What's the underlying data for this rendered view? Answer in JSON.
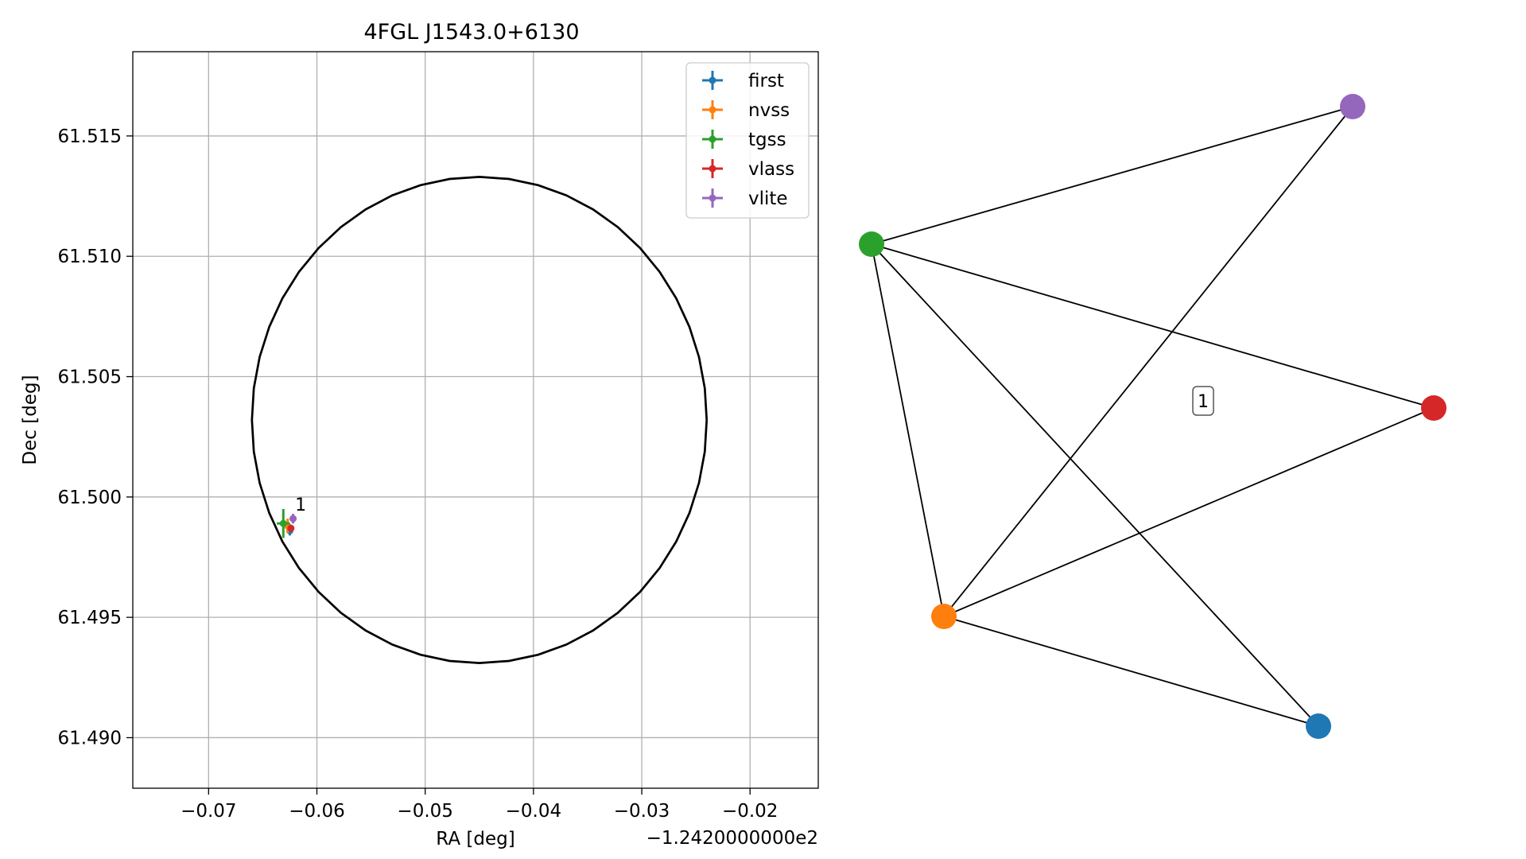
{
  "chart_data": [
    {
      "type": "scatter",
      "title": "4FGL J1543.0+6130",
      "xlabel": "RA [deg]",
      "ylabel": "Dec [deg]",
      "x_offset_label": "−1.2420000000e2",
      "xlim": [
        -0.077,
        -0.0137
      ],
      "ylim": [
        61.4879,
        61.5185
      ],
      "x_ticks": [
        -0.07,
        -0.06,
        -0.05,
        -0.04,
        -0.03,
        -0.02
      ],
      "x_tick_labels": [
        "−0.07",
        "−0.06",
        "−0.05",
        "−0.04",
        "−0.03",
        "−0.02"
      ],
      "y_ticks": [
        61.49,
        61.495,
        61.5,
        61.505,
        61.51,
        61.515
      ],
      "y_tick_labels": [
        "61.490",
        "61.495",
        "61.500",
        "61.505",
        "61.510",
        "61.515"
      ],
      "grid": true,
      "legend_position": "top-right",
      "ellipse": {
        "center": [
          -0.045,
          61.5032
        ],
        "half_width": 0.021,
        "half_height": 0.0101,
        "color": "#000000"
      },
      "series": [
        {
          "name": "first",
          "color": "#1f77b4",
          "x": -0.0625,
          "y": 61.4986,
          "xerr": 0.0003,
          "yerr": 0.0002
        },
        {
          "name": "nvss",
          "color": "#ff7f0e",
          "x": -0.0627,
          "y": 61.4988,
          "xerr": 0.0004,
          "yerr": 0.0003
        },
        {
          "name": "tgss",
          "color": "#2ca02c",
          "x": -0.0631,
          "y": 61.4989,
          "xerr": 0.0006,
          "yerr": 0.0006
        },
        {
          "name": "vlass",
          "color": "#d62728",
          "x": -0.0624,
          "y": 61.4987,
          "xerr": 0.0002,
          "yerr": 0.0001
        },
        {
          "name": "vlite",
          "color": "#9467bd",
          "x": -0.0622,
          "y": 61.4991,
          "xerr": 0.0002,
          "yerr": 0.0002
        }
      ],
      "annotations": [
        {
          "text": "1",
          "x": -0.0623,
          "y": 61.4993
        }
      ]
    },
    {
      "type": "network",
      "label": "1",
      "nodes": [
        {
          "name": "tgss",
          "color": "#2ca02c"
        },
        {
          "name": "vlite",
          "color": "#9467bd"
        },
        {
          "name": "vlass",
          "color": "#d62728"
        },
        {
          "name": "nvss",
          "color": "#ff7f0e"
        },
        {
          "name": "first",
          "color": "#1f77b4"
        }
      ],
      "edges": [
        [
          "tgss",
          "vlite"
        ],
        [
          "tgss",
          "vlass"
        ],
        [
          "tgss",
          "nvss"
        ],
        [
          "tgss",
          "first"
        ],
        [
          "nvss",
          "vlite"
        ],
        [
          "nvss",
          "vlass"
        ],
        [
          "nvss",
          "first"
        ]
      ]
    }
  ]
}
